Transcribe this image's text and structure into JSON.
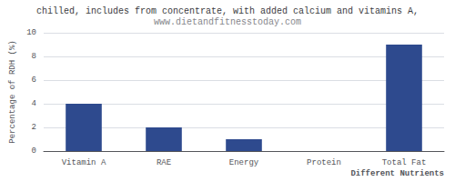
{
  "chart_data": {
    "type": "bar",
    "title": "chilled, includes from concentrate, with added calcium and vitamins A,",
    "subtitle": "www.dietandfitnesstoday.com",
    "categories": [
      "Vitamin A",
      "RAE",
      "Energy",
      "Protein",
      "Total Fat"
    ],
    "values": [
      4,
      2,
      1,
      0,
      9
    ],
    "color": "#2e4a8e",
    "xlabel": "Different Nutrients",
    "ylabel": "Percentage of RDH (%)",
    "ylim": [
      0,
      10
    ],
    "yticks": [
      0,
      2,
      4,
      6,
      8,
      10
    ],
    "grid": true
  }
}
